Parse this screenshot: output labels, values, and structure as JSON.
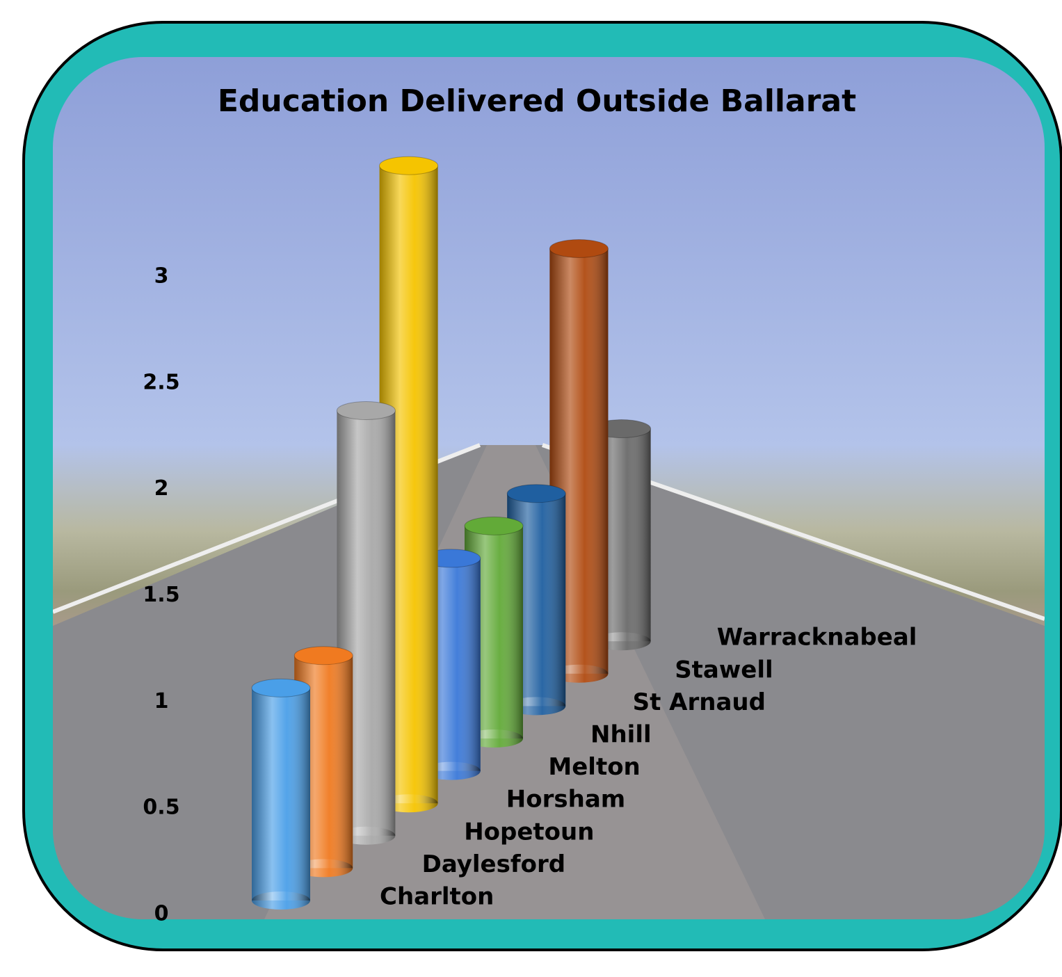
{
  "chart_data": {
    "type": "bar3d",
    "title": "Education Delivered Outside Ballarat",
    "categories": [
      "Charlton",
      "Daylesford",
      "Hopetoun",
      "Horsham",
      "Melton",
      "Nhill",
      "St Arnaud",
      "Stawell",
      "Warracknabeal"
    ],
    "values": [
      1,
      1,
      2,
      3,
      1,
      1,
      1,
      2,
      1
    ],
    "colors": [
      "#4a9fe8",
      "#f07a20",
      "#a8a8a8",
      "#f5c400",
      "#3a78d8",
      "#62aa38",
      "#1f5fa0",
      "#b04a10",
      "#6a6a6a"
    ],
    "ylim": [
      0,
      3
    ],
    "yticks": [
      0,
      0.5,
      1,
      1.5,
      2,
      2.5,
      3
    ],
    "grid": false
  }
}
